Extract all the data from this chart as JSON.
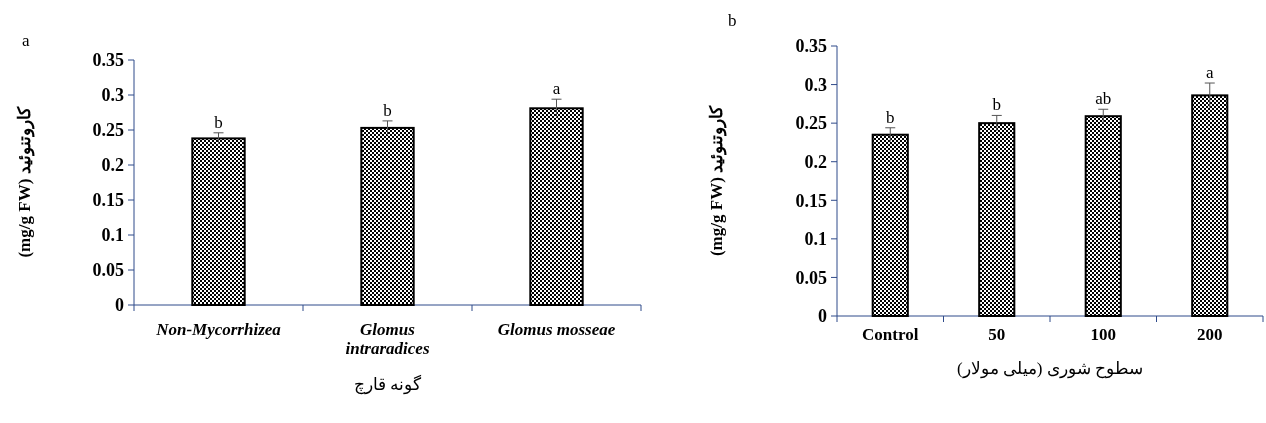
{
  "chart_data": [
    {
      "type": "bar",
      "title": "a",
      "ylabel": "(mg/g FW) کاروتنوئید",
      "xlabel": "گونه قارچ",
      "categories": [
        "Non-Mycorrhizea",
        "Glomus intraradices",
        "Glomus mosseae"
      ],
      "values": [
        0.238,
        0.253,
        0.281
      ],
      "errors": [
        0.008,
        0.01,
        0.013
      ],
      "color": "#000000",
      "ylim": [
        0,
        0.35
      ],
      "yticks": [
        0,
        0.05,
        0.1,
        0.15,
        0.2,
        0.25,
        0.3,
        0.35
      ],
      "grid": false,
      "annotations": [
        {
          "text": "b",
          "x": "Non-Mycorrhizea",
          "y": 0.246
        },
        {
          "text": "b",
          "x": "Glomus intraradices",
          "y": 0.263
        },
        {
          "text": "a",
          "x": "Glomus mosseae",
          "y": 0.294
        }
      ]
    },
    {
      "type": "bar",
      "title": "b",
      "ylabel": "(mg/g FW) کاروتنوئید",
      "xlabel": "سطوح شوری (میلی مولار)",
      "categories": [
        "Control",
        "50",
        "100",
        "200"
      ],
      "values": [
        0.235,
        0.25,
        0.259,
        0.286
      ],
      "errors": [
        0.009,
        0.01,
        0.009,
        0.016
      ],
      "color": "#000000",
      "ylim": [
        0,
        0.35
      ],
      "yticks": [
        0,
        0.05,
        0.1,
        0.15,
        0.2,
        0.25,
        0.3,
        0.35
      ],
      "grid": false,
      "annotations": [
        {
          "text": "b",
          "x": "Control",
          "y": 0.244
        },
        {
          "text": "b",
          "x": "50",
          "y": 0.26
        },
        {
          "text": "ab",
          "x": "100",
          "y": 0.268
        },
        {
          "text": "a",
          "x": "200",
          "y": 0.302
        }
      ]
    }
  ]
}
